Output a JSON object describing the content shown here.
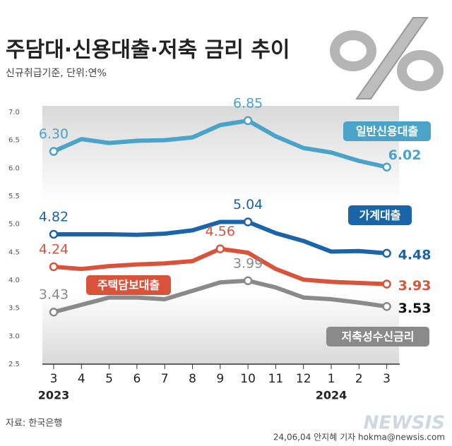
{
  "chart_data": {
    "type": "line",
    "title": "주담대·신용대출·저축 금리 추이",
    "subtitle": "신규취급기준, 단위:연%",
    "source": "자료: 한국은행",
    "byline": "24,06,04 안지혜 기자 hokma@newsis.com",
    "logo": "NEWSIS",
    "categories": [
      "3",
      "4",
      "5",
      "6",
      "7",
      "8",
      "9",
      "10",
      "11",
      "12",
      "1",
      "2",
      "3"
    ],
    "year_labels": [
      "2023",
      null,
      null,
      null,
      null,
      null,
      null,
      null,
      null,
      null,
      "2024",
      null,
      null
    ],
    "ylim": [
      2.5,
      7.0
    ],
    "yticks": [
      2.5,
      {
        "value": 3,
        "label": "3.0"
      },
      3.5,
      {
        "value": 4,
        "label": "4.0"
      },
      4.5,
      {
        "value": 5,
        "label": "5.0"
      },
      5.5,
      {
        "value": 6,
        "label": "6.0"
      },
      6.5,
      {
        "value": 7,
        "label": "7.0"
      }
    ],
    "series": [
      {
        "name": "일반신용대출",
        "color": "#4aa3c8",
        "values": [
          6.3,
          6.52,
          6.45,
          6.49,
          6.5,
          6.55,
          6.77,
          6.85,
          6.57,
          6.36,
          6.28,
          6.13,
          6.02
        ],
        "value_labels": [
          "6.30",
          null,
          null,
          null,
          null,
          null,
          null,
          "6.85",
          null,
          null,
          null,
          null,
          "6.02"
        ]
      },
      {
        "name": "가계대출",
        "color": "#1a64a8",
        "values": [
          4.82,
          4.82,
          4.82,
          4.81,
          4.83,
          4.89,
          5.04,
          5.04,
          4.84,
          4.7,
          4.51,
          4.52,
          4.48
        ],
        "value_labels": [
          "4.82",
          null,
          null,
          null,
          null,
          null,
          null,
          "5.04",
          null,
          null,
          null,
          null,
          "4.48"
        ]
      },
      {
        "name": "주택담보대출",
        "color": "#d9533b",
        "values": [
          4.24,
          4.2,
          4.25,
          4.28,
          4.3,
          4.34,
          4.56,
          4.49,
          4.2,
          4.01,
          3.97,
          3.95,
          3.93
        ],
        "value_labels": [
          "4.24",
          null,
          null,
          null,
          null,
          null,
          "4.56",
          null,
          null,
          null,
          null,
          null,
          "3.93"
        ]
      },
      {
        "name": "저축성수신금리",
        "color": "#8a8a8a",
        "values": [
          3.43,
          3.56,
          3.69,
          3.69,
          3.66,
          3.81,
          3.96,
          3.99,
          3.87,
          3.69,
          3.66,
          3.6,
          3.53
        ],
        "value_labels": [
          "3.43",
          null,
          null,
          null,
          null,
          null,
          null,
          "3.99",
          null,
          null,
          null,
          null,
          "3.53"
        ]
      }
    ]
  }
}
